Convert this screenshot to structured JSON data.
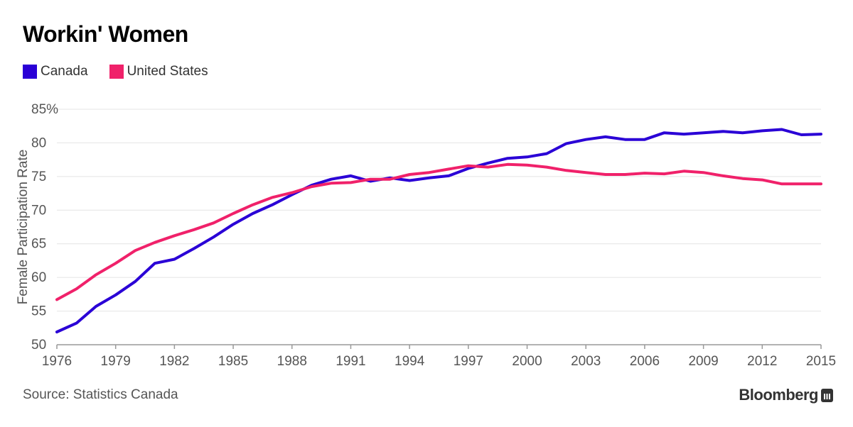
{
  "chart_data": {
    "type": "line",
    "title": "Workin' Women",
    "xlabel": "",
    "ylabel": "Female Participation Rate",
    "x": [
      1976,
      1977,
      1978,
      1979,
      1980,
      1981,
      1982,
      1983,
      1984,
      1985,
      1986,
      1987,
      1988,
      1989,
      1990,
      1991,
      1992,
      1993,
      1994,
      1995,
      1996,
      1997,
      1998,
      1999,
      2000,
      2001,
      2002,
      2003,
      2004,
      2005,
      2006,
      2007,
      2008,
      2009,
      2010,
      2011,
      2012,
      2013,
      2014,
      2015
    ],
    "xlim": [
      1976,
      2015
    ],
    "ylim": [
      50,
      85
    ],
    "xticks": [
      "1976",
      "1979",
      "1982",
      "1985",
      "1988",
      "1991",
      "1994",
      "1997",
      "2000",
      "2003",
      "2006",
      "2009",
      "2012",
      "2015"
    ],
    "yticks": [
      "50",
      "55",
      "60",
      "65",
      "70",
      "75",
      "80",
      "85%"
    ],
    "series": [
      {
        "name": "Canada",
        "color": "#2a00d6",
        "values": [
          51.9,
          53.2,
          55.7,
          57.4,
          59.4,
          62.1,
          62.7,
          64.3,
          66.0,
          67.9,
          69.5,
          70.8,
          72.3,
          73.7,
          74.6,
          75.1,
          74.3,
          74.8,
          74.4,
          74.8,
          75.1,
          76.2,
          77.0,
          77.7,
          77.9,
          78.4,
          79.9,
          80.5,
          80.9,
          80.5,
          80.5,
          81.5,
          81.3,
          81.5,
          81.7,
          81.5,
          81.8,
          82.0,
          81.2,
          81.3
        ]
      },
      {
        "name": "United States",
        "color": "#f0216a",
        "values": [
          56.7,
          58.3,
          60.4,
          62.1,
          64.0,
          65.2,
          66.2,
          67.1,
          68.1,
          69.5,
          70.8,
          71.9,
          72.6,
          73.5,
          74.0,
          74.1,
          74.6,
          74.6,
          75.3,
          75.6,
          76.1,
          76.6,
          76.4,
          76.8,
          76.7,
          76.4,
          75.9,
          75.6,
          75.3,
          75.3,
          75.5,
          75.4,
          75.8,
          75.6,
          75.1,
          74.7,
          74.5,
          73.9,
          73.9,
          73.9
        ]
      }
    ],
    "grid": true,
    "legend": "top-left"
  },
  "footer": {
    "source": "Source: Statistics Canada",
    "brand": "Bloomberg"
  }
}
